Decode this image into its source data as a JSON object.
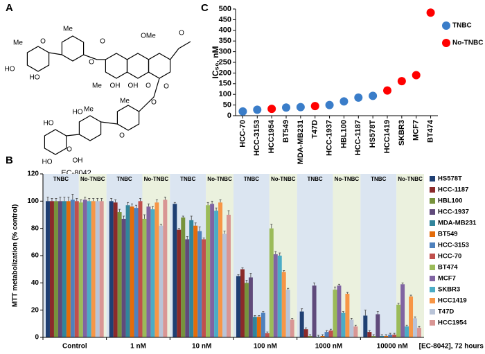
{
  "structure": {
    "panel": "A",
    "caption": "EC-8042",
    "labels": [
      "Me",
      "Me",
      "O",
      "HO",
      "HO",
      "O",
      "O",
      "OMe",
      "O",
      "Me",
      "OH",
      "OH",
      "O",
      "O",
      "Me",
      "HO",
      "O",
      "Me",
      "HO",
      "O",
      "HO",
      "OH",
      "O"
    ]
  },
  "chart_data": [
    {
      "type": "scatter",
      "panel": "C",
      "y_label": "IC₅₀, nM",
      "categories": [
        "HCC-70",
        "HCC-3153",
        "HCC1954",
        "BT549",
        "MDA-MB231",
        "T47D",
        "HCC-1937",
        "HBL100",
        "HCC-1187",
        "HS578T",
        "HCC1419",
        "SKBR3",
        "MCF7",
        "BT474"
      ],
      "series": [
        {
          "name": "TNBC",
          "color": "#3a7dc9",
          "values": [
            20,
            28,
            null,
            38,
            40,
            null,
            50,
            67,
            85,
            93,
            null,
            null,
            null,
            null
          ]
        },
        {
          "name": "No-TNBC",
          "color": "#ff0000",
          "values": [
            null,
            null,
            32,
            null,
            null,
            45,
            null,
            null,
            null,
            null,
            118,
            162,
            190,
            483
          ]
        }
      ],
      "ylim": [
        0,
        500
      ],
      "yticks": [
        0,
        50,
        100,
        150,
        200,
        250,
        300,
        350,
        400,
        450,
        500
      ]
    },
    {
      "type": "bar",
      "panel": "B",
      "y_label": "MTT metabolization (% control)",
      "x_label": "[EC-8042], 72 hours",
      "categories": [
        "Control",
        "1 nM",
        "10 nM",
        "100 nM",
        "1000 nM",
        "10000 nM"
      ],
      "band_labels": [
        "TNBC",
        "No-TNBC"
      ],
      "band_colors": [
        "#dbe5f1",
        "#ebf1de"
      ],
      "ylim": [
        0,
        120
      ],
      "yticks": [
        0,
        20,
        40,
        60,
        80,
        100,
        120
      ],
      "series": [
        {
          "name": "HS578T",
          "color": "#1f3f73",
          "values": [
            100,
            100,
            98,
            45,
            19,
            16
          ],
          "errors": [
            3,
            2,
            1,
            1,
            2,
            4
          ]
        },
        {
          "name": "HCC-1187",
          "color": "#8b2a2a",
          "values": [
            100,
            99,
            79,
            50,
            6,
            4
          ],
          "errors": [
            2,
            2,
            1,
            1,
            1,
            1
          ]
        },
        {
          "name": "HBL100",
          "color": "#77933c",
          "values": [
            100,
            92,
            88,
            40,
            1,
            1
          ],
          "errors": [
            2,
            2,
            1,
            2,
            1,
            1
          ]
        },
        {
          "name": "HCC-1937",
          "color": "#604a7b",
          "values": [
            100,
            87,
            72,
            44,
            38,
            17
          ],
          "errors": [
            3,
            2,
            2,
            3,
            2,
            2
          ]
        },
        {
          "name": "MDA-MB231",
          "color": "#31859c",
          "values": [
            100,
            97,
            86,
            15,
            0.5,
            1
          ],
          "errors": [
            3,
            2,
            3,
            1,
            1,
            1
          ]
        },
        {
          "name": "BT549",
          "color": "#e46c0a",
          "values": [
            100,
            96,
            82,
            15,
            1,
            1
          ],
          "errors": [
            3,
            2,
            2,
            1,
            1,
            1
          ]
        },
        {
          "name": "HCC-3153",
          "color": "#4f81bd",
          "values": [
            101,
            95,
            78,
            18,
            4,
            2
          ],
          "errors": [
            4,
            2,
            3,
            1,
            1,
            1
          ]
        },
        {
          "name": "HCC-70",
          "color": "#c0504d",
          "values": [
            100,
            100,
            72,
            3,
            5,
            2
          ],
          "errors": [
            2,
            2,
            1,
            1,
            1,
            1
          ]
        },
        {
          "name": "BT474",
          "color": "#9bbb59",
          "values": [
            99,
            87,
            97,
            80,
            35,
            24
          ],
          "errors": [
            2,
            3,
            2,
            3,
            2,
            1
          ]
        },
        {
          "name": "MCF7",
          "color": "#8064a2",
          "values": [
            101,
            96,
            98,
            61,
            38,
            39
          ],
          "errors": [
            2,
            2,
            2,
            2,
            1,
            1
          ]
        },
        {
          "name": "SKBR3",
          "color": "#4bacc6",
          "values": [
            100,
            94,
            93,
            60,
            18,
            8
          ],
          "errors": [
            2,
            2,
            2,
            2,
            1,
            1
          ]
        },
        {
          "name": "HCC1419",
          "color": "#f79646",
          "values": [
            100,
            99,
            99,
            48,
            32,
            30
          ],
          "errors": [
            2,
            2,
            2,
            1,
            1,
            1
          ]
        },
        {
          "name": "T47D",
          "color": "#b9c4d8",
          "values": [
            100,
            82,
            76,
            35,
            13,
            14
          ],
          "errors": [
            2,
            1,
            2,
            1,
            1,
            1
          ]
        },
        {
          "name": "HCC1954",
          "color": "#d99694",
          "values": [
            100,
            101,
            90,
            13,
            8,
            7
          ],
          "errors": [
            2,
            2,
            3,
            1,
            1,
            1
          ]
        }
      ]
    }
  ]
}
